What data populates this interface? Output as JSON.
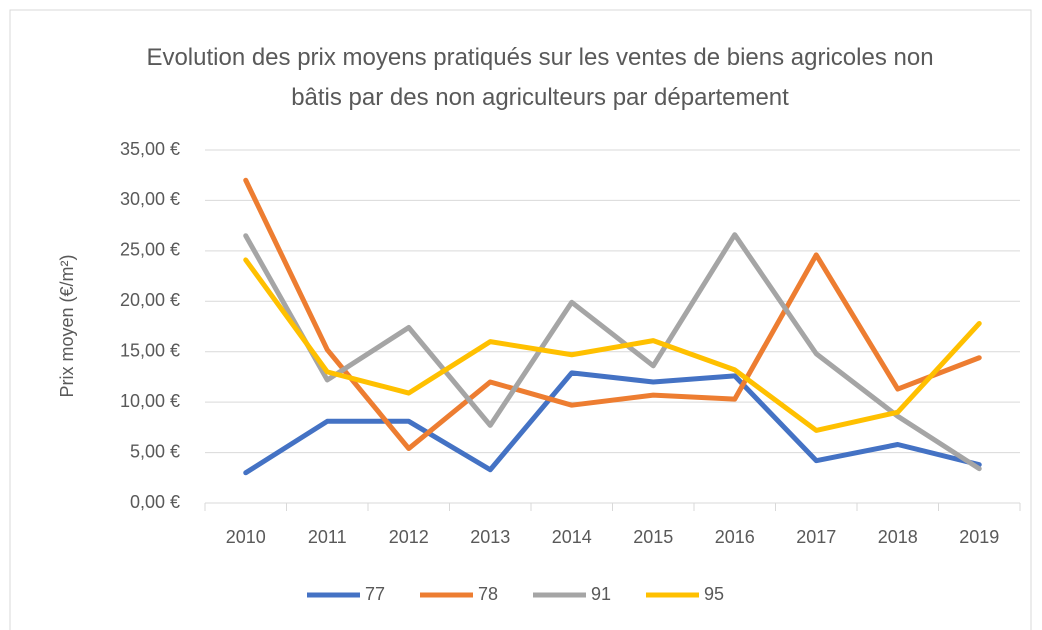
{
  "chart_data": {
    "type": "line",
    "title": "Evolution des prix moyens pratiqués sur les ventes de biens agricoles non bâtis par des non agriculteurs par département",
    "y_label": "Prix moyen (€/m²)",
    "categories": [
      "2010",
      "2011",
      "2012",
      "2013",
      "2014",
      "2015",
      "2016",
      "2017",
      "2018",
      "2019"
    ],
    "series": [
      {
        "name": "77",
        "color": "#4472c4",
        "values": [
          3.0,
          8.1,
          8.1,
          3.3,
          12.9,
          12.0,
          12.6,
          4.2,
          5.8,
          3.8
        ]
      },
      {
        "name": "78",
        "color": "#ed7d31",
        "values": [
          32.0,
          15.2,
          5.4,
          12.0,
          9.7,
          10.7,
          10.3,
          24.6,
          11.3,
          14.4
        ]
      },
      {
        "name": "91",
        "color": "#a5a5a5",
        "values": [
          26.5,
          12.2,
          17.4,
          7.7,
          19.9,
          13.6,
          26.6,
          14.8,
          8.6,
          3.4
        ]
      },
      {
        "name": "95",
        "color": "#ffc000",
        "values": [
          24.1,
          13.0,
          10.9,
          16.0,
          14.7,
          16.1,
          13.2,
          7.2,
          9.0,
          17.8
        ]
      }
    ],
    "ylim": [
      0,
      35
    ],
    "yticks": [
      {
        "value": 0,
        "label": "0,00 €"
      },
      {
        "value": 5,
        "label": "5,00 €"
      },
      {
        "value": 10,
        "label": "10,00 €"
      },
      {
        "value": 15,
        "label": "15,00 €"
      },
      {
        "value": 20,
        "label": "20,00 €"
      },
      {
        "value": 25,
        "label": "25,00 €"
      },
      {
        "value": 30,
        "label": "30,00 €"
      },
      {
        "value": 35,
        "label": "35,00 €"
      }
    ],
    "grid": true,
    "legend": "bottom"
  }
}
